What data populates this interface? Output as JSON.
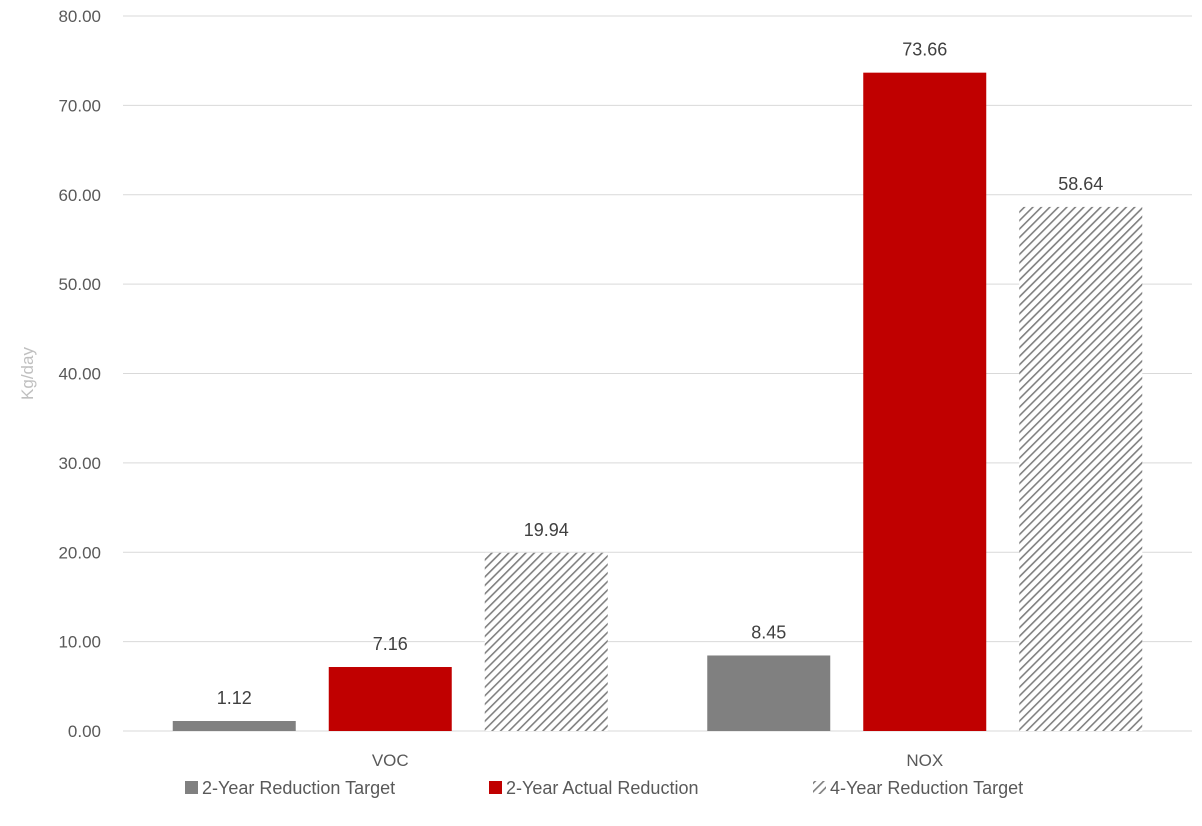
{
  "chart_data": {
    "type": "bar",
    "categories": [
      "VOC",
      "NOX"
    ],
    "series": [
      {
        "name": "2-Year Reduction Target",
        "values": [
          1.12,
          8.45
        ],
        "color": "#808080",
        "pattern": "solid"
      },
      {
        "name": "2-Year Actual Reduction",
        "values": [
          7.16,
          73.66
        ],
        "color": "#c00000",
        "pattern": "solid"
      },
      {
        "name": "4-Year Reduction Target",
        "values": [
          19.94,
          58.64
        ],
        "color": "#808080",
        "pattern": "diagonal-hatch"
      }
    ],
    "data_labels": [
      [
        "1.12",
        "8.45"
      ],
      [
        "7.16",
        "73.66"
      ],
      [
        "19.94",
        "58.64"
      ]
    ],
    "ylabel": "Kg/day",
    "xlabel": "",
    "title": "",
    "ylim": [
      0,
      80
    ],
    "yticks": [
      0,
      10,
      20,
      30,
      40,
      50,
      60,
      70,
      80
    ],
    "ytick_labels": [
      "0.00",
      "10.00",
      "20.00",
      "30.00",
      "40.00",
      "50.00",
      "60.00",
      "70.00",
      "80.00"
    ],
    "grid": true,
    "legend_position": "bottom"
  }
}
